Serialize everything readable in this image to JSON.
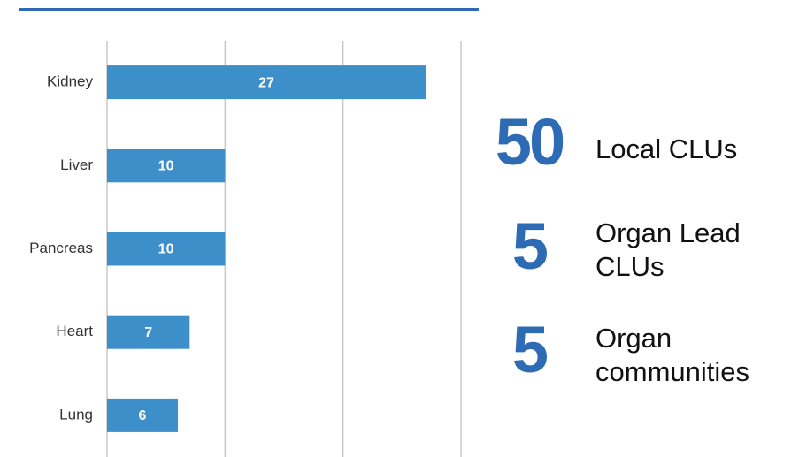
{
  "chart_data": {
    "type": "barh",
    "categories": [
      "Kidney",
      "Liver",
      "Pancreas",
      "Heart",
      "Lung"
    ],
    "values": [
      27,
      10,
      10,
      7,
      6
    ],
    "color": "#3d8fc9",
    "xlim": [
      0,
      30
    ],
    "xticks": [
      0,
      10,
      20,
      30
    ],
    "grid": true
  },
  "stats": [
    {
      "number": "50",
      "label": "Local CLUs"
    },
    {
      "number": "5",
      "label": "Organ Lead CLUs"
    },
    {
      "number": "5",
      "label": "Organ communities"
    }
  ]
}
